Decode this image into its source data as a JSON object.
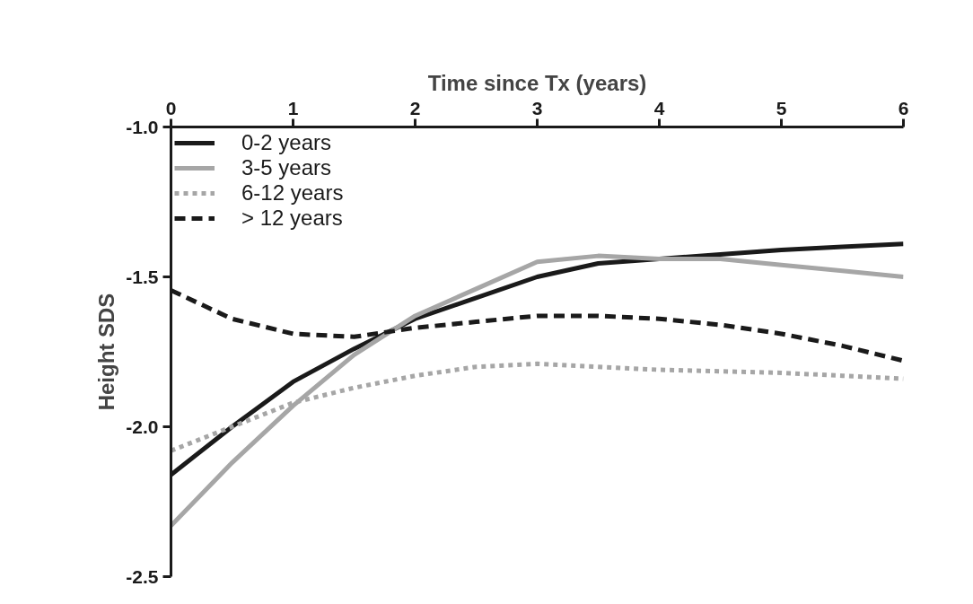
{
  "chart_data": {
    "type": "line",
    "xlabel": "Time since Tx (years)",
    "ylabel": "Height SDS",
    "x": [
      0,
      0.5,
      1,
      1.5,
      2,
      2.5,
      3,
      3.5,
      4,
      4.5,
      5,
      5.5,
      6
    ],
    "series": [
      {
        "name": "0-2 years",
        "color": "#1a1a1a",
        "line_style": "solid",
        "values": [
          -2.16,
          -2.0,
          -1.85,
          -1.74,
          -1.64,
          -1.57,
          -1.5,
          -1.455,
          -1.44,
          -1.425,
          -1.41,
          -1.4,
          -1.39
        ]
      },
      {
        "name": "3-5 years",
        "color": "#a6a6a6",
        "line_style": "solid",
        "values": [
          -2.33,
          -2.12,
          -1.93,
          -1.76,
          -1.63,
          -1.54,
          -1.45,
          -1.43,
          -1.44,
          -1.44,
          -1.46,
          -1.48,
          -1.5
        ]
      },
      {
        "name": "6-12 years",
        "color": "#a6a6a6",
        "line_style": "dotted",
        "values": [
          -2.08,
          -2.0,
          -1.92,
          -1.87,
          -1.83,
          -1.8,
          -1.79,
          -1.8,
          -1.81,
          -1.815,
          -1.82,
          -1.83,
          -1.84
        ]
      },
      {
        "name": "> 12 years",
        "color": "#1a1a1a",
        "line_style": "dashed",
        "values": [
          -1.545,
          -1.64,
          -1.69,
          -1.7,
          -1.67,
          -1.65,
          -1.63,
          -1.63,
          -1.64,
          -1.66,
          -1.69,
          -1.73,
          -1.78
        ]
      }
    ],
    "xlim": [
      0,
      6
    ],
    "xticks": [
      0,
      1,
      2,
      3,
      4,
      5,
      6
    ],
    "ylim": [
      -2.5,
      -1.0
    ],
    "yticks": [
      {
        "value": -2.5,
        "label": "-2.5"
      },
      {
        "value": -2.0,
        "label": "-2.0"
      },
      {
        "value": -1.5,
        "label": "-1.5"
      },
      {
        "value": -1.0,
        "label": "-1.0"
      }
    ],
    "grid": false,
    "legend": "top left",
    "marker": "none"
  }
}
